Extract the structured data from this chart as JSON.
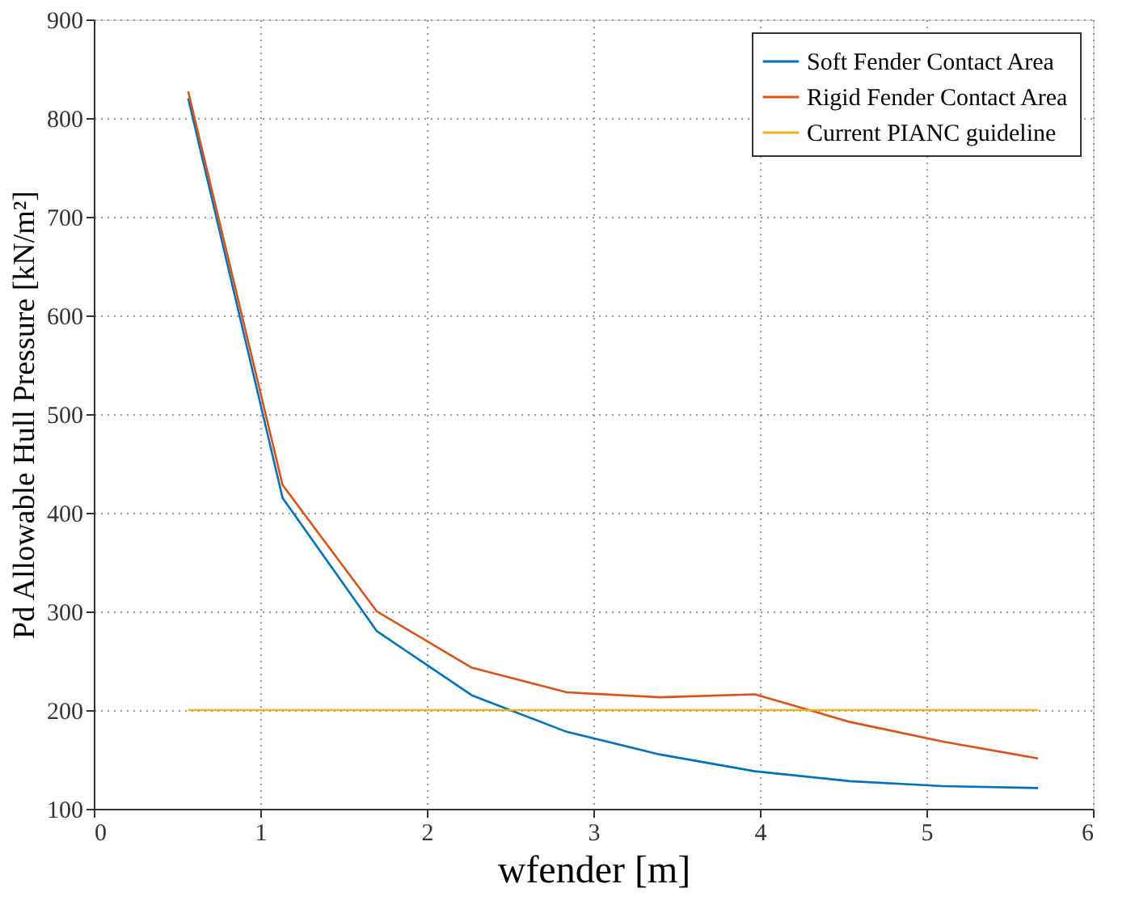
{
  "chart_data": {
    "type": "line",
    "xlabel": "wfender [m]",
    "ylabel": "Pd Allowable Hull Pressure [kN/m²]",
    "x": [
      0.567,
      1.134,
      1.7,
      2.27,
      2.84,
      3.4,
      3.97,
      4.54,
      5.1,
      5.67
    ],
    "series": [
      {
        "name": "Soft Fender Contact Area",
        "color": "#0072bd",
        "values": [
          820,
          415,
          280,
          215,
          178,
          155,
          138,
          128,
          123,
          121
        ]
      },
      {
        "name": "Rigid Fender Contact Area",
        "color": "#d95319",
        "values": [
          827,
          428,
          300,
          243,
          218,
          213,
          216,
          188,
          168,
          151
        ]
      },
      {
        "name": "Current PIANC guideline",
        "color": "#edb120",
        "x": [
          0.567,
          5.67
        ],
        "values": [
          200,
          200
        ]
      }
    ],
    "xlim": [
      0,
      6
    ],
    "xticks": [
      0,
      1,
      2,
      3,
      4,
      5,
      6
    ],
    "ylim": [
      100,
      900
    ],
    "yticks": [
      100,
      200,
      300,
      400,
      500,
      600,
      700,
      800,
      900
    ],
    "grid": true,
    "legend": "top right",
    "marker": "none",
    "line_style": "solid"
  }
}
